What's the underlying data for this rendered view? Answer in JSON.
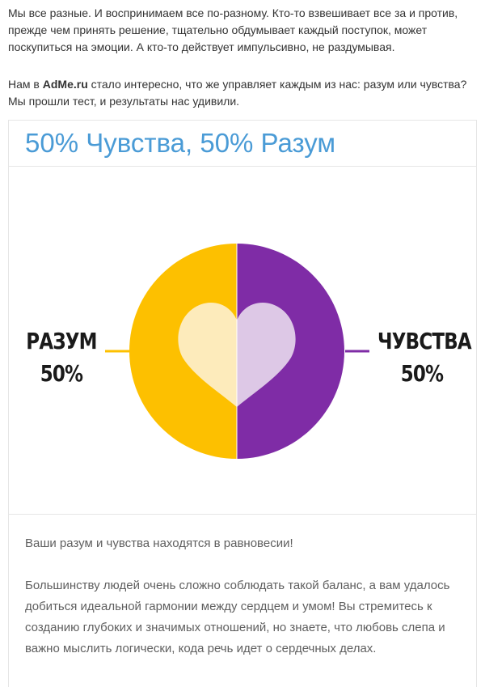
{
  "article": {
    "intro_paragraph": "Мы все разные. И воспринимаем все по-разному. Кто-то взвешивает все за и против, прежде чем принять решение, тщательно обдумывает каждый поступок, может поскупиться на эмоции. А кто-то действует импульсивно, не раздумывая.",
    "test_prefix": "Нам в ",
    "site_name": "AdMe.ru",
    "test_suffix": " стало интересно, что же управляет каждым из нас: разум или чувства? Мы прошли тест, и результаты нас удивили."
  },
  "result_card": {
    "title": "50% Чувства, 50% Разум",
    "title_color": "#4a9bd6",
    "left_label": "РАЗУМ",
    "left_percent": "50%",
    "right_label": "ЧУВСТВА",
    "right_percent": "50%",
    "mind_share": 0.5,
    "colors": {
      "mind": "#fdc000",
      "mind_heart": "#fdebbb",
      "feelings": "#7f2ca6",
      "feelings_heart": "#ddc8e6"
    },
    "headline": "Ваши разум и чувства находятся в равновесии!",
    "description": "Большинству людей очень сложно соблюдать такой баланс, а вам удалось добиться идеальной гармонии между сердцем и умом! Вы стремитесь к созданию глубоких и значимых отношений, но знаете, что любовь слепа и важно мыслить логически, кода речь идет о сердечных делах."
  }
}
